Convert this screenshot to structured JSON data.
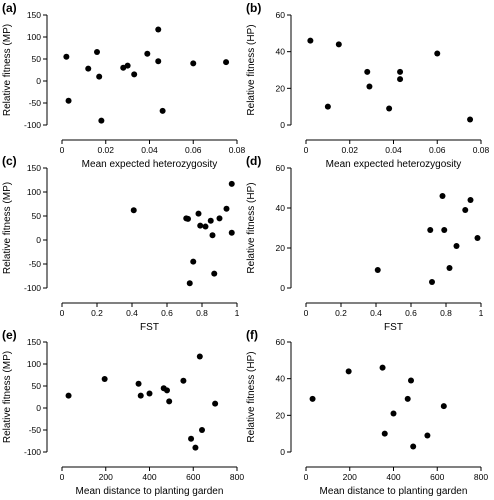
{
  "chart_data": [
    {
      "panel": "(a)",
      "type": "scatter",
      "xlabel": "Mean expected heterozygosity",
      "ylabel": "Relative fitness (MP)",
      "xlim": [
        0,
        0.08
      ],
      "ylim": [
        -100,
        150
      ],
      "xticks": [
        0,
        0.02,
        0.04,
        0.06,
        0.08
      ],
      "xtick_labels": [
        "0",
        "0.02",
        "0.04",
        "0.06",
        "0.08"
      ],
      "yticks": [
        -100,
        -50,
        0,
        50,
        100,
        150
      ],
      "ytick_labels": [
        "-100",
        "-50",
        "0",
        "50",
        "100",
        "150"
      ],
      "points": [
        {
          "x": 0.002,
          "y": 55
        },
        {
          "x": 0.003,
          "y": -45
        },
        {
          "x": 0.012,
          "y": 28
        },
        {
          "x": 0.016,
          "y": 66
        },
        {
          "x": 0.017,
          "y": 10
        },
        {
          "x": 0.018,
          "y": -90
        },
        {
          "x": 0.028,
          "y": 30
        },
        {
          "x": 0.03,
          "y": 35
        },
        {
          "x": 0.033,
          "y": 15
        },
        {
          "x": 0.039,
          "y": 62
        },
        {
          "x": 0.044,
          "y": 117
        },
        {
          "x": 0.044,
          "y": 45
        },
        {
          "x": 0.046,
          "y": -68
        },
        {
          "x": 0.06,
          "y": 40
        },
        {
          "x": 0.075,
          "y": 43
        }
      ]
    },
    {
      "panel": "(b)",
      "type": "scatter",
      "xlabel": "Mean expected heterozygosity",
      "ylabel": "Relative fitness (HP)",
      "xlim": [
        0,
        0.08
      ],
      "ylim": [
        0,
        60
      ],
      "xticks": [
        0,
        0.02,
        0.04,
        0.06,
        0.08
      ],
      "xtick_labels": [
        "0",
        "0.02",
        "0.04",
        "0.06",
        "0.08"
      ],
      "yticks": [
        0,
        20,
        40,
        60
      ],
      "ytick_labels": [
        "0",
        "20",
        "40",
        "60"
      ],
      "points": [
        {
          "x": 0.002,
          "y": 46
        },
        {
          "x": 0.01,
          "y": 10
        },
        {
          "x": 0.015,
          "y": 44
        },
        {
          "x": 0.028,
          "y": 29
        },
        {
          "x": 0.029,
          "y": 21
        },
        {
          "x": 0.038,
          "y": 9
        },
        {
          "x": 0.043,
          "y": 29
        },
        {
          "x": 0.043,
          "y": 25
        },
        {
          "x": 0.06,
          "y": 39
        },
        {
          "x": 0.075,
          "y": 3
        }
      ]
    },
    {
      "panel": "(c)",
      "type": "scatter",
      "xlabel": "FST",
      "ylabel": "Relative fitness (MP)",
      "xlim": [
        0,
        1
      ],
      "ylim": [
        -100,
        150
      ],
      "xticks": [
        0,
        0.2,
        0.4,
        0.6,
        0.8,
        1
      ],
      "xtick_labels": [
        "0",
        "0.2",
        "0.4",
        "0.6",
        "0.8",
        "1"
      ],
      "yticks": [
        -100,
        -50,
        0,
        50,
        100,
        150
      ],
      "ytick_labels": [
        "-100",
        "-50",
        "0",
        "50",
        "100",
        "150"
      ],
      "points": [
        {
          "x": 0.41,
          "y": 62
        },
        {
          "x": 0.71,
          "y": 45
        },
        {
          "x": 0.72,
          "y": 44
        },
        {
          "x": 0.73,
          "y": -90
        },
        {
          "x": 0.75,
          "y": -45
        },
        {
          "x": 0.78,
          "y": 55
        },
        {
          "x": 0.79,
          "y": 30
        },
        {
          "x": 0.82,
          "y": 28
        },
        {
          "x": 0.85,
          "y": 40
        },
        {
          "x": 0.86,
          "y": 10
        },
        {
          "x": 0.87,
          "y": -70
        },
        {
          "x": 0.9,
          "y": 45
        },
        {
          "x": 0.94,
          "y": 65
        },
        {
          "x": 0.97,
          "y": 117
        },
        {
          "x": 0.97,
          "y": 15
        }
      ]
    },
    {
      "panel": "(d)",
      "type": "scatter",
      "xlabel": "FST",
      "ylabel": "Relative fitness (HP)",
      "xlim": [
        0,
        1
      ],
      "ylim": [
        0,
        60
      ],
      "xticks": [
        0,
        0.2,
        0.4,
        0.6,
        0.8,
        1
      ],
      "xtick_labels": [
        "0",
        "0.2",
        "0.4",
        "0.6",
        "0.8",
        "1"
      ],
      "yticks": [
        0,
        20,
        40,
        60
      ],
      "ytick_labels": [
        "0",
        "20",
        "40",
        "60"
      ],
      "points": [
        {
          "x": 0.41,
          "y": 9
        },
        {
          "x": 0.71,
          "y": 29
        },
        {
          "x": 0.72,
          "y": 3
        },
        {
          "x": 0.78,
          "y": 46
        },
        {
          "x": 0.79,
          "y": 29
        },
        {
          "x": 0.82,
          "y": 10
        },
        {
          "x": 0.86,
          "y": 21
        },
        {
          "x": 0.91,
          "y": 39
        },
        {
          "x": 0.94,
          "y": 44
        },
        {
          "x": 0.98,
          "y": 25
        }
      ]
    },
    {
      "panel": "(e)",
      "type": "scatter",
      "xlabel": "Mean distance to planting garden",
      "ylabel": "Relative fitness (MP)",
      "xlim": [
        0,
        800
      ],
      "ylim": [
        -100,
        150
      ],
      "xticks": [
        0,
        200,
        400,
        600,
        800
      ],
      "xtick_labels": [
        "0",
        "200",
        "400",
        "600",
        "800"
      ],
      "yticks": [
        -100,
        -50,
        0,
        50,
        100,
        150
      ],
      "ytick_labels": [
        "-100",
        "-50",
        "0",
        "50",
        "100",
        "150"
      ],
      "points": [
        {
          "x": 30,
          "y": 28
        },
        {
          "x": 195,
          "y": 66
        },
        {
          "x": 350,
          "y": 55
        },
        {
          "x": 360,
          "y": 28
        },
        {
          "x": 400,
          "y": 33
        },
        {
          "x": 465,
          "y": 45
        },
        {
          "x": 480,
          "y": 40
        },
        {
          "x": 490,
          "y": 15
        },
        {
          "x": 555,
          "y": 62
        },
        {
          "x": 590,
          "y": -70
        },
        {
          "x": 610,
          "y": -90
        },
        {
          "x": 630,
          "y": 117
        },
        {
          "x": 640,
          "y": -50
        },
        {
          "x": 700,
          "y": 10
        }
      ]
    },
    {
      "panel": "(f)",
      "type": "scatter",
      "xlabel": "Mean distance to planting garden",
      "ylabel": "Relative fitness (HP)",
      "xlim": [
        0,
        800
      ],
      "ylim": [
        0,
        60
      ],
      "xticks": [
        0,
        200,
        400,
        600,
        800
      ],
      "xtick_labels": [
        "0",
        "200",
        "400",
        "600",
        "800"
      ],
      "yticks": [
        0,
        20,
        40,
        60
      ],
      "ytick_labels": [
        "0",
        "20",
        "40",
        "60"
      ],
      "points": [
        {
          "x": 30,
          "y": 29
        },
        {
          "x": 195,
          "y": 44
        },
        {
          "x": 350,
          "y": 46
        },
        {
          "x": 360,
          "y": 10
        },
        {
          "x": 400,
          "y": 21
        },
        {
          "x": 465,
          "y": 29
        },
        {
          "x": 480,
          "y": 39
        },
        {
          "x": 490,
          "y": 3
        },
        {
          "x": 555,
          "y": 9
        },
        {
          "x": 630,
          "y": 25
        }
      ]
    }
  ]
}
